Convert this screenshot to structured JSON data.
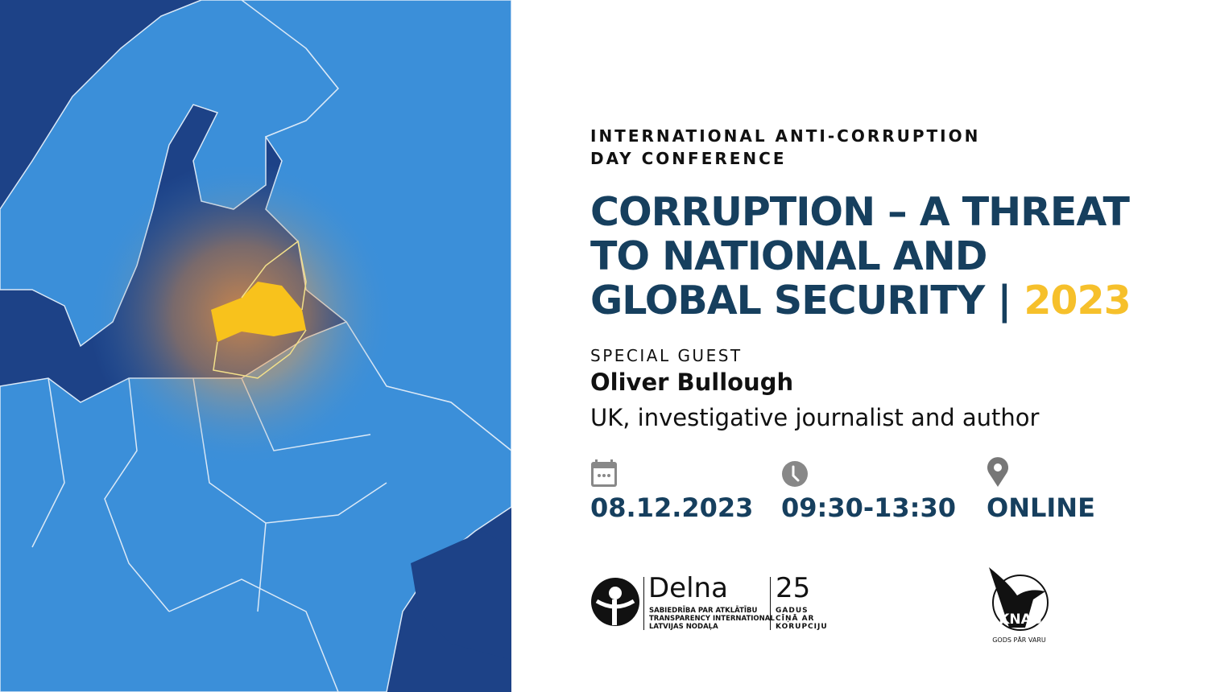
{
  "event": {
    "kicker": "INTERNATIONAL ANTI-CORRUPTION DAY CONFERENCE",
    "title": "CORRUPTION – A THREAT TO NATIONAL AND GLOBAL SECURITY |",
    "year": "2023"
  },
  "guest": {
    "label": "SPECIAL GUEST",
    "name": "Oliver Bullough",
    "description": "UK, investigative journalist and author"
  },
  "details": [
    {
      "icon": "calendar-icon",
      "value": "08.12.2023"
    },
    {
      "icon": "clock-icon",
      "value": "09:30-13:30"
    },
    {
      "icon": "location-pin-icon",
      "value": "ONLINE"
    }
  ],
  "logos": {
    "delna": {
      "name": "Delna",
      "subtitle": [
        "SABIEDRĪBA PAR ATKLĀTĪBU",
        "TRANSPARENCY INTERNATIONAL",
        "LATVIJAS NODAĻA"
      ],
      "anniversary_number": "25",
      "anniversary_text": [
        "GADUS",
        "CĪŅĀ AR",
        "KORUPCIJU"
      ]
    },
    "knab": {
      "name": "KNAB",
      "motto": "GODS PĀR VARU"
    }
  },
  "colors": {
    "title": "#163f5e",
    "accent": "#f6c02b",
    "land": "#3b8fd9",
    "sea": "#1d4287",
    "highlight": "#f8c21c"
  }
}
